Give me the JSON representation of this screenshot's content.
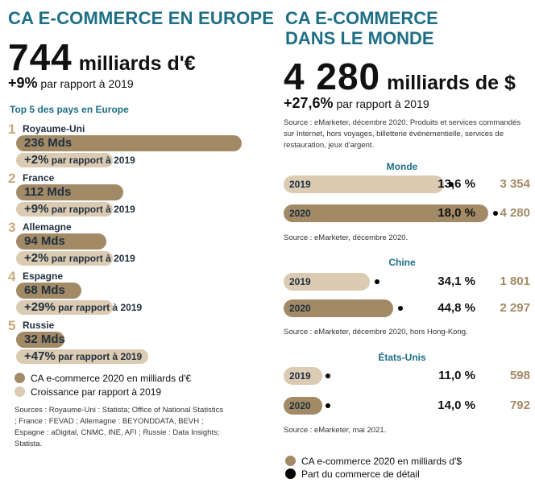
{
  "colors": {
    "title": "#1e6f86",
    "bar_dark": "#a38a66",
    "bar_light": "#dccbb3",
    "rank": "#c9a97a",
    "dot": "#000000"
  },
  "left": {
    "title": "CA E-COMMERCE EN EUROPE",
    "big_number": "744",
    "big_unit": "milliards d'€",
    "growth_value": "+9%",
    "growth_text": " par rapport à 2019",
    "top5_title": "Top 5 des pays en Europe",
    "legend": [
      {
        "label": "CA e-commerce 2020 en milliards d'€",
        "color": "#a38a66"
      },
      {
        "label": "Croissance par rapport à 2019",
        "color": "#dccbb3"
      }
    ],
    "sources": "Sources : Royaume-Uni : Statista; Office of National Statistics ; France : FEVAD ; Allemagne : BEYONDDATA, BEVH ; Espagne : aDigital, CNMC, INE, AFI ; Russie : Data Insights; Statista."
  },
  "right": {
    "title_line1": "CA E-COMMERCE",
    "title_line2": "DANS LE MONDE",
    "big_number": "4 280",
    "big_unit": "milliards de $",
    "growth_value": "+27,6%",
    "growth_text": " par rapport à 2019",
    "note": "Source : eMarketer, décembre 2020. Produits et services commandés sur Internet, hors voyages, billetterie événementielle, services de restauration, jeux d'argent.",
    "legend": [
      {
        "label": "CA e-commerce 2020 en milliards d'$",
        "color": "#a38a66"
      },
      {
        "label": "Part du commerce de détail",
        "color": "#000000"
      }
    ]
  },
  "chart_data": [
    {
      "type": "bar",
      "title": "Top 5 des pays en Europe",
      "categories": [
        "Royaume-Uni",
        "France",
        "Allemagne",
        "Espagne",
        "Russie"
      ],
      "ranks": [
        "1",
        "2",
        "3",
        "4",
        "5"
      ],
      "series": [
        {
          "name": "CA e-commerce 2020 en milliards d'€",
          "values": [
            236,
            112,
            94,
            68,
            32
          ],
          "labels": [
            "236 Mds",
            "112 Mds",
            "94 Mds",
            "68 Mds",
            "32 Mds"
          ]
        },
        {
          "name": "Croissance par rapport à 2019",
          "values": [
            2,
            9,
            2,
            29,
            47
          ],
          "labels": [
            "+2%",
            "+9%",
            "+2%",
            "+29%",
            "+47%"
          ],
          "suffix": " par rapport à 2019"
        }
      ]
    },
    {
      "type": "bar",
      "title": "Monde",
      "categories": [
        "2019",
        "2020"
      ],
      "series": [
        {
          "name": "CA e-commerce en milliards de $",
          "values": [
            3354,
            4280
          ],
          "labels": [
            "3 354",
            "4 280"
          ]
        },
        {
          "name": "Part du commerce de détail",
          "values": [
            13.6,
            18.0
          ],
          "labels": [
            "13,6 %",
            "18,0 %"
          ]
        }
      ],
      "source": "Source : eMarketer, décembre 2020."
    },
    {
      "type": "bar",
      "title": "Chine",
      "categories": [
        "2019",
        "2020"
      ],
      "series": [
        {
          "name": "CA e-commerce en milliards de $",
          "values": [
            1801,
            2297
          ],
          "labels": [
            "1 801",
            "2 297"
          ]
        },
        {
          "name": "Part du commerce de détail",
          "values": [
            34.1,
            44.8
          ],
          "labels": [
            "34,1 %",
            "44,8 %"
          ]
        }
      ],
      "source": "Source : eMarketer, décembre 2020, hors Hong-Kong."
    },
    {
      "type": "bar",
      "title": "États-Unis",
      "categories": [
        "2019",
        "2020"
      ],
      "series": [
        {
          "name": "CA e-commerce en milliards de $",
          "values": [
            598,
            792
          ],
          "labels": [
            "598",
            "792"
          ]
        },
        {
          "name": "Part du commerce de détail",
          "values": [
            11.0,
            14.0
          ],
          "labels": [
            "11,0 %",
            "14,0 %"
          ]
        }
      ],
      "source": "Source : eMarketer, mai 2021."
    }
  ]
}
